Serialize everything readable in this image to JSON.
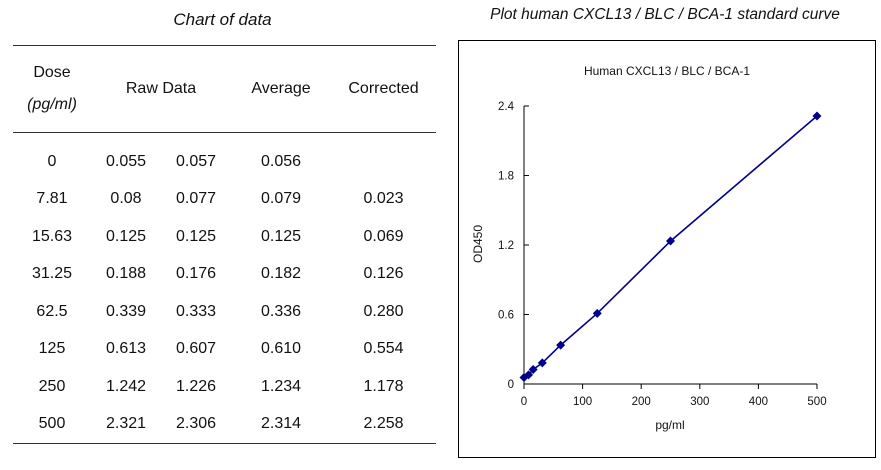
{
  "left_title": "Chart of data",
  "right_title": "Plot human CXCL13 / BLC / BCA-1 standard curve",
  "table": {
    "headers": {
      "dose": "Dose",
      "dose_unit": "(pg/ml)",
      "raw": "Raw Data",
      "average": "Average",
      "corrected": "Corrected"
    },
    "rows": [
      {
        "dose": "0",
        "raw1": "0.055",
        "raw2": "0.057",
        "average": "0.056",
        "corrected": ""
      },
      {
        "dose": "7.81",
        "raw1": "0.08",
        "raw2": "0.077",
        "average": "0.079",
        "corrected": "0.023"
      },
      {
        "dose": "15.63",
        "raw1": "0.125",
        "raw2": "0.125",
        "average": "0.125",
        "corrected": "0.069"
      },
      {
        "dose": "31.25",
        "raw1": "0.188",
        "raw2": "0.176",
        "average": "0.182",
        "corrected": "0.126"
      },
      {
        "dose": "62.5",
        "raw1": "0.339",
        "raw2": "0.333",
        "average": "0.336",
        "corrected": "0.280"
      },
      {
        "dose": "125",
        "raw1": "0.613",
        "raw2": "0.607",
        "average": "0.610",
        "corrected": "0.554"
      },
      {
        "dose": "250",
        "raw1": "1.242",
        "raw2": "1.226",
        "average": "1.234",
        "corrected": "1.178"
      },
      {
        "dose": "500",
        "raw1": "2.321",
        "raw2": "2.306",
        "average": "2.314",
        "corrected": "2.258"
      }
    ]
  },
  "chart_data": {
    "type": "line",
    "title": "Human CXCL13 / BLC / BCA-1",
    "xlabel": "pg/ml",
    "ylabel": "OD450",
    "xlim": [
      0,
      500
    ],
    "ylim": [
      0,
      2.4
    ],
    "xticks": [
      0,
      100,
      200,
      300,
      400,
      500
    ],
    "yticks": [
      0,
      0.6,
      1.2,
      1.8,
      2.4
    ],
    "ytick_labels": [
      "0",
      "0.6",
      "1.2",
      "1.8",
      "2.4"
    ],
    "grid": false,
    "series": [
      {
        "color": "#00008b",
        "marker": "diamond",
        "x": [
          0,
          7.81,
          15.63,
          31.25,
          62.5,
          125,
          250,
          500
        ],
        "y": [
          0.056,
          0.079,
          0.125,
          0.182,
          0.336,
          0.61,
          1.234,
          2.314
        ]
      }
    ]
  }
}
